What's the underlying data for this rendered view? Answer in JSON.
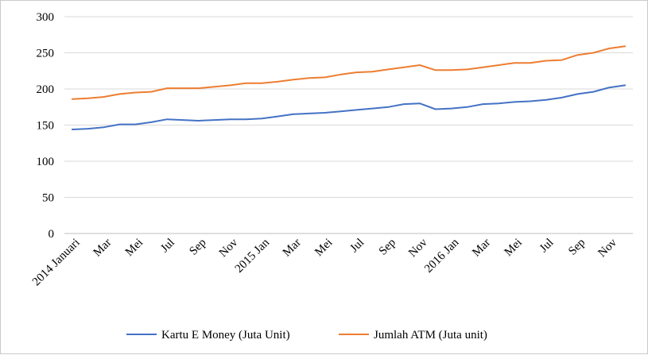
{
  "chart_data": {
    "type": "line",
    "title": "",
    "xlabel": "",
    "ylabel": "",
    "ylim": [
      0,
      300
    ],
    "yticks": [
      0,
      50,
      100,
      150,
      200,
      250,
      300
    ],
    "grid": "horizontal",
    "legend_position": "bottom",
    "x_tick_labels": [
      {
        "index": 0,
        "label": "2014 Januari"
      },
      {
        "index": 2,
        "label": "Mar"
      },
      {
        "index": 4,
        "label": "Mei"
      },
      {
        "index": 6,
        "label": "Jul"
      },
      {
        "index": 8,
        "label": "Sep"
      },
      {
        "index": 10,
        "label": "Nov"
      },
      {
        "index": 12,
        "label": "2015 Jan"
      },
      {
        "index": 14,
        "label": "Mar"
      },
      {
        "index": 16,
        "label": "Mei"
      },
      {
        "index": 18,
        "label": "Jul"
      },
      {
        "index": 20,
        "label": "Sep"
      },
      {
        "index": 22,
        "label": "Nov"
      },
      {
        "index": 24,
        "label": "2016 Jan"
      },
      {
        "index": 26,
        "label": "Mar"
      },
      {
        "index": 28,
        "label": "Mei"
      },
      {
        "index": 30,
        "label": "Jul"
      },
      {
        "index": 32,
        "label": "Sep"
      },
      {
        "index": 34,
        "label": "Nov"
      }
    ],
    "series": [
      {
        "name": "Kartu E Money (Juta Unit)",
        "color": "#4472C4",
        "values": [
          144,
          145,
          147,
          151,
          151,
          154,
          158,
          157,
          156,
          157,
          158,
          158,
          159,
          162,
          165,
          166,
          167,
          169,
          171,
          173,
          175,
          179,
          180,
          172,
          173,
          175,
          179,
          180,
          182,
          183,
          185,
          188,
          193,
          196,
          202,
          205
        ]
      },
      {
        "name": "Jumlah ATM (Juta unit)",
        "color": "#ED7D31",
        "values": [
          186,
          187,
          189,
          193,
          195,
          196,
          201,
          201,
          201,
          203,
          205,
          208,
          208,
          210,
          213,
          215,
          216,
          220,
          223,
          224,
          227,
          230,
          233,
          226,
          226,
          227,
          230,
          233,
          236,
          236,
          239,
          240,
          247,
          250,
          256,
          259
        ]
      }
    ]
  }
}
